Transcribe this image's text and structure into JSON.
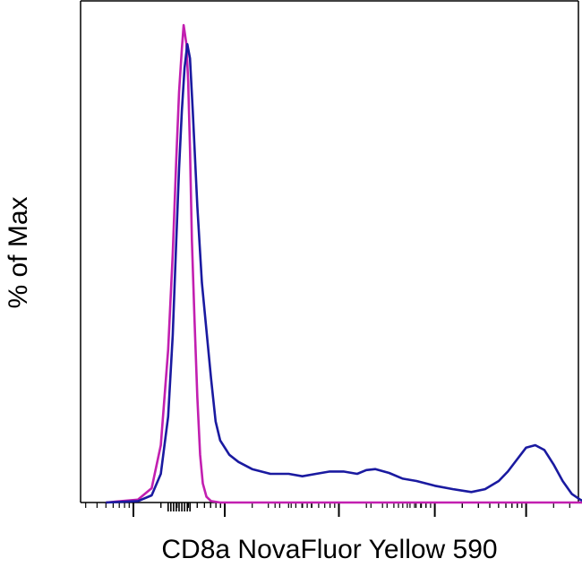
{
  "chart_data": {
    "type": "line",
    "title": "",
    "xlabel": "CD8a NovaFluor Yellow 590",
    "ylabel": "% of Max",
    "xscale": "log",
    "xlim": [
      -1,
      5.5
    ],
    "ylim": [
      0,
      100
    ],
    "grid": false,
    "legend": "none",
    "tick_labels": "none",
    "series": [
      {
        "color": "#c21fb0",
        "points": [
          [
            -0.8,
            0
          ],
          [
            -0.45,
            0.6
          ],
          [
            -0.3,
            3
          ],
          [
            -0.2,
            12
          ],
          [
            -0.12,
            32
          ],
          [
            -0.07,
            52
          ],
          [
            -0.03,
            72
          ],
          [
            0.0,
            86
          ],
          [
            0.03,
            95
          ],
          [
            0.05,
            100
          ],
          [
            0.08,
            96
          ],
          [
            0.1,
            88
          ],
          [
            0.12,
            74
          ],
          [
            0.14,
            55
          ],
          [
            0.17,
            38
          ],
          [
            0.2,
            22
          ],
          [
            0.23,
            10
          ],
          [
            0.26,
            4
          ],
          [
            0.3,
            1.2
          ],
          [
            0.35,
            0.3
          ],
          [
            0.45,
            0
          ],
          [
            5.5,
            0
          ]
        ]
      },
      {
        "color": "#1a1aa0",
        "points": [
          [
            -0.8,
            0
          ],
          [
            -0.45,
            0.3
          ],
          [
            -0.3,
            1.5
          ],
          [
            -0.2,
            6
          ],
          [
            -0.12,
            18
          ],
          [
            -0.07,
            35
          ],
          [
            -0.03,
            55
          ],
          [
            0.0,
            70
          ],
          [
            0.03,
            82
          ],
          [
            0.06,
            91
          ],
          [
            0.09,
            96
          ],
          [
            0.12,
            93
          ],
          [
            0.15,
            82
          ],
          [
            0.2,
            62
          ],
          [
            0.25,
            46
          ],
          [
            0.3,
            36
          ],
          [
            0.35,
            26
          ],
          [
            0.4,
            17
          ],
          [
            0.45,
            13
          ],
          [
            0.55,
            10
          ],
          [
            0.65,
            8.5
          ],
          [
            0.8,
            7
          ],
          [
            1.0,
            6
          ],
          [
            1.2,
            6
          ],
          [
            1.35,
            5.5
          ],
          [
            1.5,
            6
          ],
          [
            1.65,
            6.5
          ],
          [
            1.8,
            6.5
          ],
          [
            1.95,
            6
          ],
          [
            2.05,
            6.8
          ],
          [
            2.15,
            7
          ],
          [
            2.3,
            6.2
          ],
          [
            2.45,
            5
          ],
          [
            2.6,
            4.5
          ],
          [
            2.8,
            3.5
          ],
          [
            3.0,
            2.8
          ],
          [
            3.2,
            2.2
          ],
          [
            3.35,
            2.8
          ],
          [
            3.5,
            4.5
          ],
          [
            3.6,
            6.5
          ],
          [
            3.7,
            9
          ],
          [
            3.8,
            11.5
          ],
          [
            3.9,
            12
          ],
          [
            4.0,
            11
          ],
          [
            4.1,
            8
          ],
          [
            4.2,
            4.5
          ],
          [
            4.3,
            1.8
          ],
          [
            4.4,
            0.5
          ],
          [
            4.5,
            0
          ],
          [
            5.5,
            0
          ]
        ]
      }
    ]
  }
}
